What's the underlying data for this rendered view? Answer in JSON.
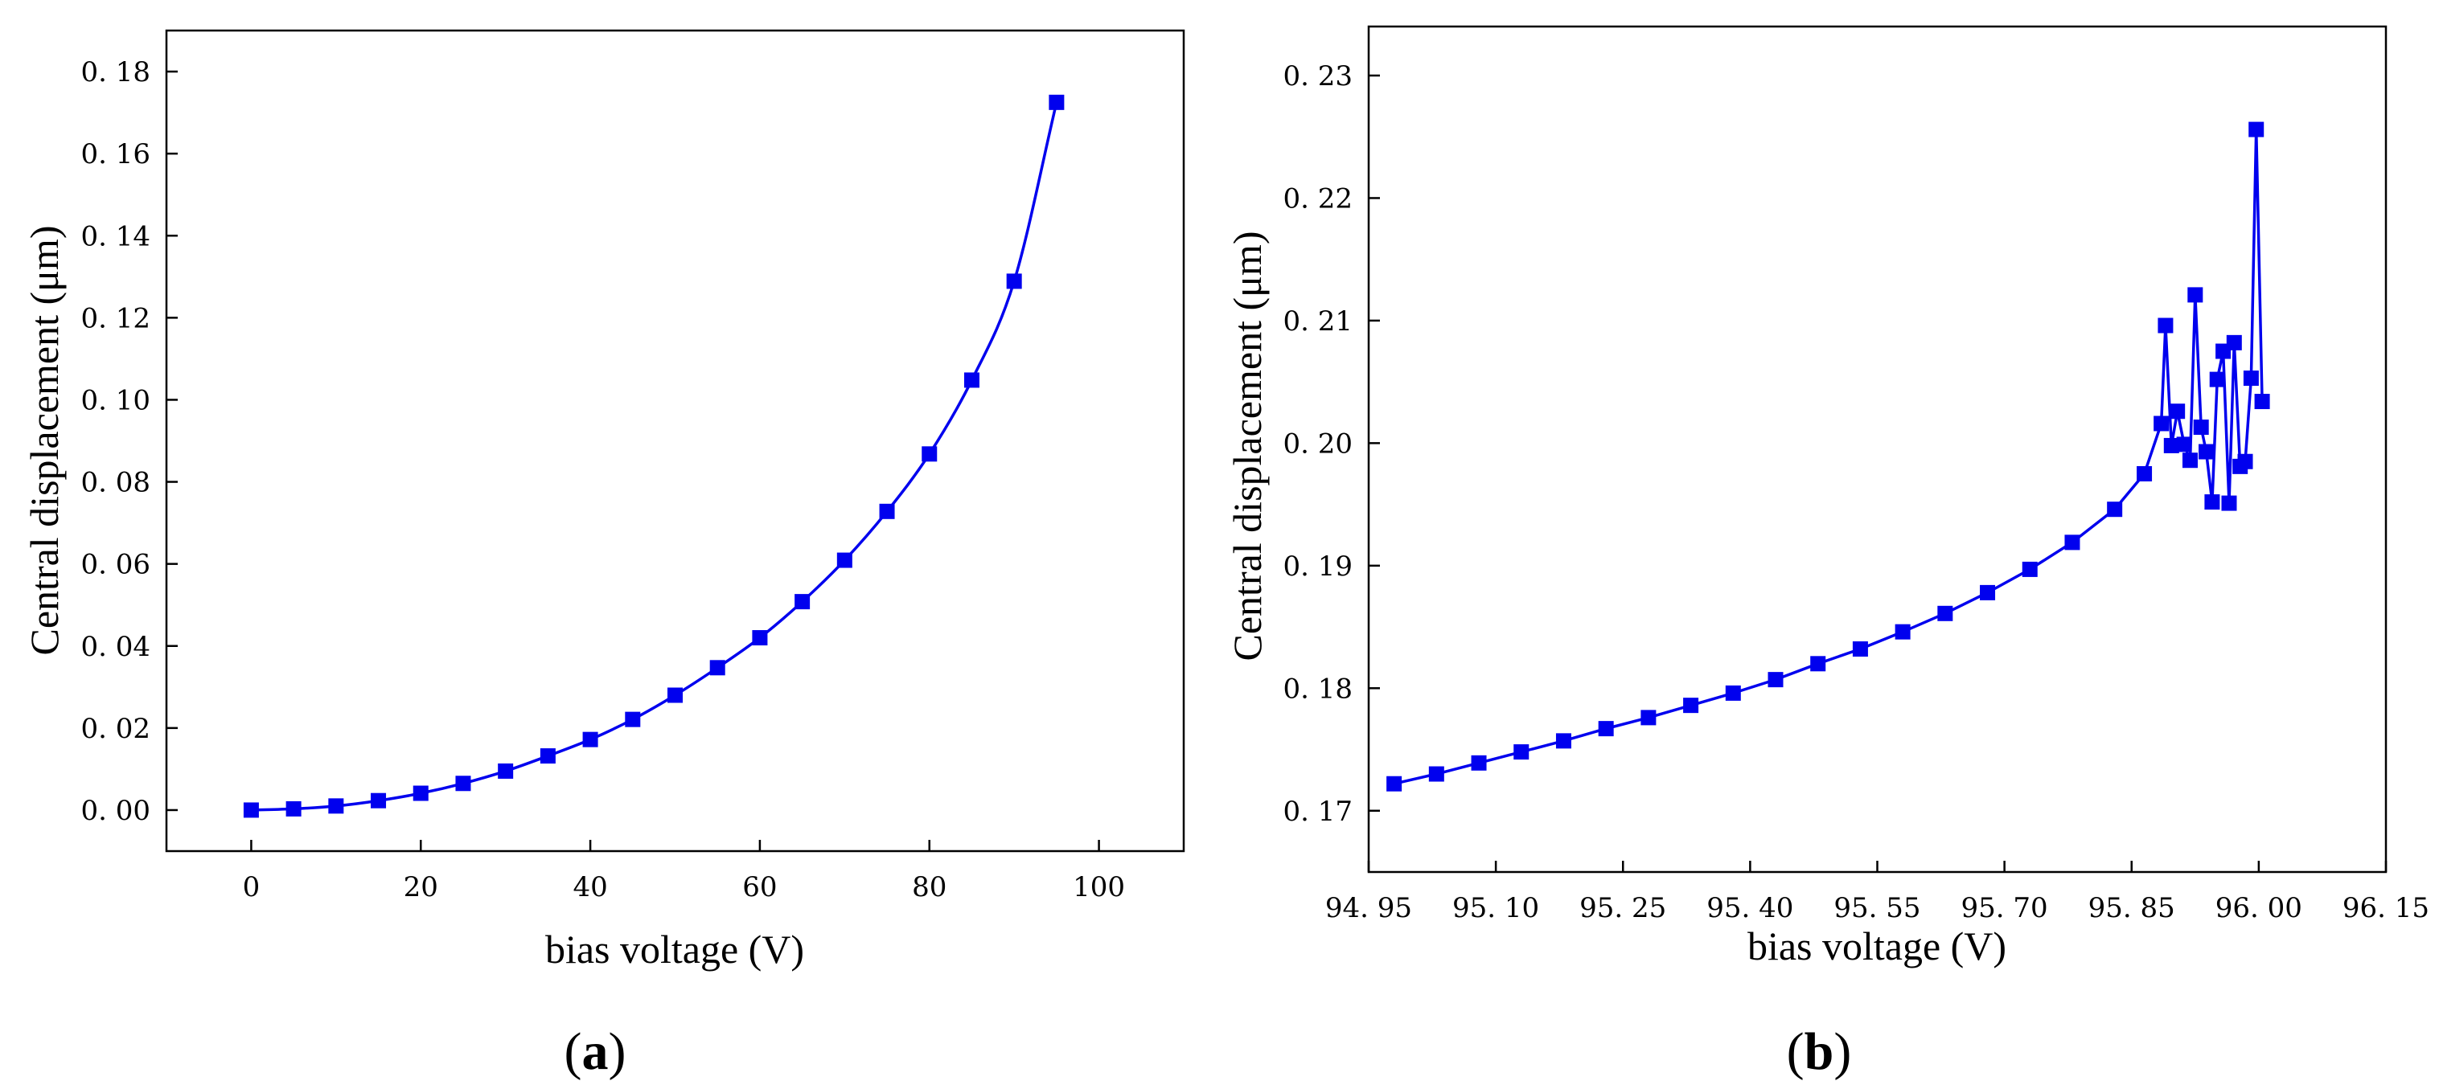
{
  "chart_data": [
    {
      "type": "line",
      "panel_label": "a",
      "xlabel": "bias voltage (V)",
      "ylabel": "Central displacement (μm)",
      "xlim": [
        -10,
        110
      ],
      "ylim": [
        -0.01,
        0.19
      ],
      "xticks": [
        0,
        20,
        40,
        60,
        80,
        100
      ],
      "yticks": [
        0.0,
        0.02,
        0.04,
        0.06,
        0.08,
        0.1,
        0.12,
        0.14,
        0.16,
        0.18
      ],
      "xtick_labels": [
        "0",
        "20",
        "40",
        "60",
        "80",
        "100"
      ],
      "ytick_labels": [
        "0. 00",
        "0. 02",
        "0. 04",
        "0. 06",
        "0. 08",
        "0. 10",
        "0. 12",
        "0. 14",
        "0. 16",
        "0. 18"
      ],
      "series": [
        {
          "name": "central displacement",
          "color": "#0000ee",
          "marker": "square",
          "x": [
            0,
            5,
            10,
            15,
            20,
            25,
            30,
            35,
            40,
            45,
            50,
            55,
            60,
            65,
            70,
            75,
            80,
            85,
            90,
            95
          ],
          "y": [
            0.0,
            0.0003,
            0.001,
            0.0023,
            0.0041,
            0.0065,
            0.0095,
            0.0132,
            0.0172,
            0.0221,
            0.028,
            0.0347,
            0.042,
            0.0508,
            0.0609,
            0.0728,
            0.0868,
            0.1048,
            0.1289,
            0.1725
          ]
        }
      ]
    },
    {
      "type": "line",
      "panel_label": "b",
      "xlabel": "bias voltage (V)",
      "ylabel": "Central displacement (μm)",
      "xlim": [
        94.95,
        96.15
      ],
      "ylim": [
        0.165,
        0.234
      ],
      "xticks": [
        94.95,
        95.1,
        95.25,
        95.4,
        95.55,
        95.7,
        95.85,
        96.0,
        96.15
      ],
      "yticks": [
        0.17,
        0.18,
        0.19,
        0.2,
        0.21,
        0.22,
        0.23
      ],
      "xtick_labels": [
        "94. 95",
        "95. 10",
        "95. 25",
        "95. 40",
        "95. 55",
        "95. 70",
        "95. 85",
        "96. 00",
        "96. 15"
      ],
      "ytick_labels": [
        "0. 17",
        "0. 18",
        "0. 19",
        "0. 20",
        "0. 21",
        "0. 22",
        "0. 23"
      ],
      "series": [
        {
          "name": "central displacement",
          "color": "#0000ee",
          "marker": "square",
          "x": [
            94.98,
            95.03,
            95.08,
            95.13,
            95.18,
            95.23,
            95.28,
            95.33,
            95.38,
            95.43,
            95.48,
            95.53,
            95.58,
            95.63,
            95.68,
            95.73,
            95.78,
            95.83,
            95.865,
            95.885,
            95.89,
            95.897,
            95.904,
            95.912,
            95.919,
            95.925,
            95.932,
            95.938,
            95.945,
            95.951,
            95.958,
            95.965,
            95.971,
            95.978,
            95.984,
            95.991,
            95.997,
            96.004
          ],
          "y": [
            0.1722,
            0.173,
            0.1739,
            0.1748,
            0.1757,
            0.1767,
            0.1776,
            0.1786,
            0.1796,
            0.1807,
            0.182,
            0.1832,
            0.1846,
            0.1861,
            0.1878,
            0.1897,
            0.1919,
            0.1946,
            0.1975,
            0.2016,
            0.2096,
            0.1998,
            0.2026,
            0.1999,
            0.1986,
            0.2121,
            0.2013,
            0.1993,
            0.1952,
            0.2052,
            0.2075,
            0.1951,
            0.2082,
            0.1981,
            0.1985,
            0.2053,
            0.2256,
            0.2034
          ]
        }
      ]
    }
  ]
}
